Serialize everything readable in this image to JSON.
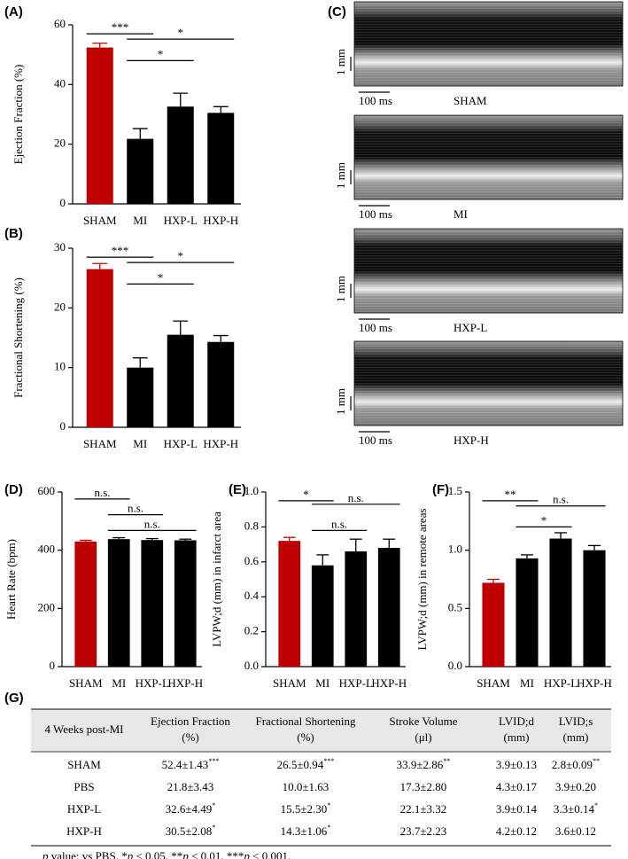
{
  "chart_data": [
    {
      "type": "bar",
      "label": "(A)",
      "ylabel": "Ejection Fraction (%)",
      "categories": [
        "SHAM",
        "MI",
        "HXP-L",
        "HXP-H"
      ],
      "values": [
        52.4,
        21.8,
        32.6,
        30.5
      ],
      "errors": [
        1.43,
        3.43,
        4.49,
        2.08
      ],
      "colors": [
        "#c00000",
        "#000000",
        "#000000",
        "#000000"
      ],
      "ylim": [
        0,
        60
      ],
      "yticks": [
        0,
        20,
        40,
        60
      ],
      "annotations": [
        {
          "text": "***",
          "from": 0,
          "to": 1
        },
        {
          "text": "*",
          "from": 1,
          "to": 2
        },
        {
          "text": "*",
          "from": 1,
          "to": 3
        }
      ]
    },
    {
      "type": "bar",
      "label": "(B)",
      "ylabel": "Fractional Shortening (%)",
      "categories": [
        "SHAM",
        "MI",
        "HXP-L",
        "HXP-H"
      ],
      "values": [
        26.5,
        10.0,
        15.5,
        14.3
      ],
      "errors": [
        0.94,
        1.63,
        2.3,
        1.06
      ],
      "colors": [
        "#c00000",
        "#000000",
        "#000000",
        "#000000"
      ],
      "ylim": [
        0,
        30
      ],
      "yticks": [
        0,
        10,
        20,
        30
      ],
      "annotations": [
        {
          "text": "***",
          "from": 0,
          "to": 1
        },
        {
          "text": "*",
          "from": 1,
          "to": 2
        },
        {
          "text": "*",
          "from": 1,
          "to": 3
        }
      ]
    },
    {
      "type": "bar",
      "label": "(D)",
      "ylabel": "Heart Rate (bpm)",
      "categories": [
        "SHAM",
        "MI",
        "HXP-L",
        "HXP-H"
      ],
      "values": [
        430,
        438,
        435,
        434
      ],
      "errors": [
        4,
        5,
        5,
        4
      ],
      "colors": [
        "#c00000",
        "#000000",
        "#000000",
        "#000000"
      ],
      "ylim": [
        0,
        600
      ],
      "yticks": [
        0,
        200,
        400,
        600
      ],
      "annotations": [
        {
          "text": "n.s.",
          "from": 0,
          "to": 1
        },
        {
          "text": "n.s.",
          "from": 1,
          "to": 2
        },
        {
          "text": "n.s.",
          "from": 1,
          "to": 3
        }
      ]
    },
    {
      "type": "bar",
      "label": "(E)",
      "ylabel": "LVPW;d (mm) in infarct area",
      "categories": [
        "SHAM",
        "MI",
        "HXP-L",
        "HXP-H"
      ],
      "values": [
        0.72,
        0.58,
        0.66,
        0.68
      ],
      "errors": [
        0.02,
        0.06,
        0.07,
        0.05
      ],
      "colors": [
        "#c00000",
        "#000000",
        "#000000",
        "#000000"
      ],
      "ylim": [
        0,
        1
      ],
      "yticks": [
        {
          "value": 0,
          "label": "0.0"
        },
        0.2,
        0.4,
        0.6,
        0.8,
        {
          "value": 1,
          "label": "1.0"
        }
      ],
      "annotations": [
        {
          "text": "*",
          "from": 0,
          "to": 1
        },
        {
          "text": "n.s.",
          "from": 1,
          "to": 2
        },
        {
          "text": "n.s.",
          "from": 1,
          "to": 3
        }
      ]
    },
    {
      "type": "bar",
      "label": "(F)",
      "ylabel": "LVPW;d (mm) in remote areas",
      "categories": [
        "SHAM",
        "MI",
        "HXP-L",
        "HXP-H"
      ],
      "values": [
        0.72,
        0.93,
        1.1,
        1.0
      ],
      "errors": [
        0.03,
        0.03,
        0.05,
        0.04
      ],
      "colors": [
        "#c00000",
        "#000000",
        "#000000",
        "#000000"
      ],
      "ylim": [
        0,
        1.5
      ],
      "yticks": [
        {
          "value": 0,
          "label": "0.0"
        },
        0.5,
        {
          "value": 1,
          "label": "1.0"
        },
        1.5
      ],
      "annotations": [
        {
          "text": "**",
          "from": 0,
          "to": 1
        },
        {
          "text": "*",
          "from": 1,
          "to": 2
        },
        {
          "text": "n.s.",
          "from": 1,
          "to": 3
        }
      ]
    }
  ],
  "echo": {
    "label": "(C)",
    "scale_y": "1 mm",
    "scale_x": "100 ms",
    "images": [
      "SHAM",
      "MI",
      "HXP-L",
      "HXP-H"
    ]
  },
  "table": {
    "label": "(G)",
    "header": [
      [
        "4 Weeks post-MI"
      ],
      [
        "Ejection Fraction",
        "(%)"
      ],
      [
        "Fractional Shortening",
        "(%)"
      ],
      [
        "Stroke Volume",
        "(μl)"
      ],
      [
        "LVID;d",
        "(mm)"
      ],
      [
        "LVID;s",
        "(mm)"
      ]
    ],
    "rows": [
      [
        "SHAM",
        {
          "text": "52.4±1.43",
          "sup": "***"
        },
        {
          "text": "26.5±0.94",
          "sup": "***"
        },
        {
          "text": "33.9±2.86",
          "sup": "**"
        },
        "3.9±0.13",
        {
          "text": "2.8±0.09",
          "sup": "**"
        }
      ],
      [
        "PBS",
        "21.8±3.43",
        "10.0±1.63",
        "17.3±2.80",
        "4.3±0.17",
        "3.9±0.20"
      ],
      [
        "HXP-L",
        {
          "text": "32.6±4.49",
          "sup": "*"
        },
        {
          "text": "15.5±2.30",
          "sup": "*"
        },
        "22.1±3.32",
        "3.9±0.14",
        {
          "text": "3.3±0.14",
          "sup": "*"
        }
      ],
      [
        "HXP-H",
        {
          "text": "30.5±2.08",
          "sup": "*"
        },
        {
          "text": "14.3±1.06",
          "sup": "*"
        },
        "23.7±2.23",
        "4.2±0.12",
        "3.6±0.12"
      ]
    ],
    "footnote": [
      {
        "text": "p",
        "italic": true
      },
      {
        "text": " value: vs PBS. *"
      },
      {
        "text": "p",
        "italic": true
      },
      {
        "text": " < 0.05, **"
      },
      {
        "text": "p",
        "italic": true
      },
      {
        "text": " < 0.01, ***"
      },
      {
        "text": "p",
        "italic": true
      },
      {
        "text": " < 0.001."
      }
    ]
  }
}
